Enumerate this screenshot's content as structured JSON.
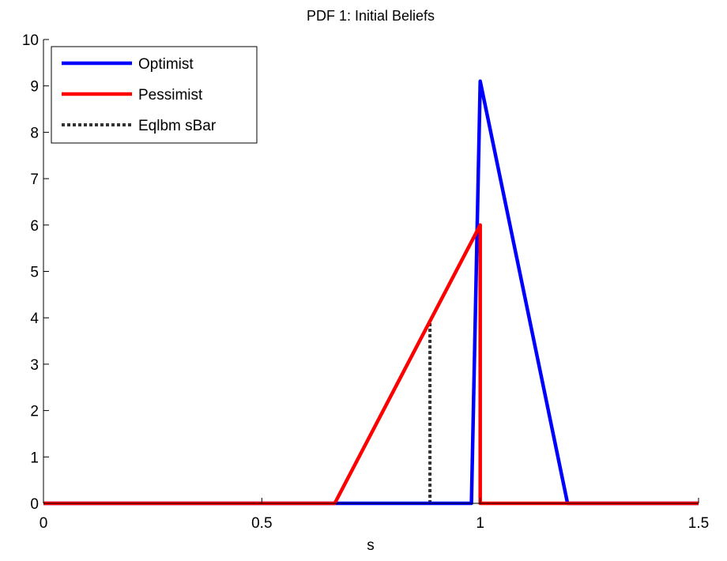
{
  "chart_data": {
    "type": "line",
    "title": "PDF 1: Initial Beliefs",
    "xlabel": "s",
    "ylabel": "",
    "xlim": [
      0,
      1.5
    ],
    "ylim": [
      0,
      10
    ],
    "xticks": [
      0,
      0.5,
      1,
      1.5
    ],
    "xtick_labels": [
      "0",
      "0.5",
      "1",
      "1.5"
    ],
    "yticks": [
      0,
      1,
      2,
      3,
      4,
      5,
      6,
      7,
      8,
      9,
      10
    ],
    "ytick_labels": [
      "0",
      "1",
      "2",
      "3",
      "4",
      "5",
      "6",
      "7",
      "8",
      "9",
      "10"
    ],
    "grid": false,
    "legend_position": "top-left",
    "series": [
      {
        "name": "Optimist",
        "color": "#0000ff",
        "style": "solid",
        "x": [
          0,
          0.98,
          1.0,
          1.2,
          1.5
        ],
        "y": [
          0,
          0,
          9.1,
          0,
          0
        ]
      },
      {
        "name": "Pessimist",
        "color": "#ff0000",
        "style": "solid",
        "x": [
          0,
          0.667,
          1.0,
          1.0,
          1.5
        ],
        "y": [
          0,
          0,
          6.0,
          0,
          0
        ]
      },
      {
        "name": "Eqlbm sBar",
        "color": "#333333",
        "style": "dotted",
        "x": [
          0.885,
          0.885
        ],
        "y": [
          0,
          3.9
        ]
      }
    ]
  }
}
